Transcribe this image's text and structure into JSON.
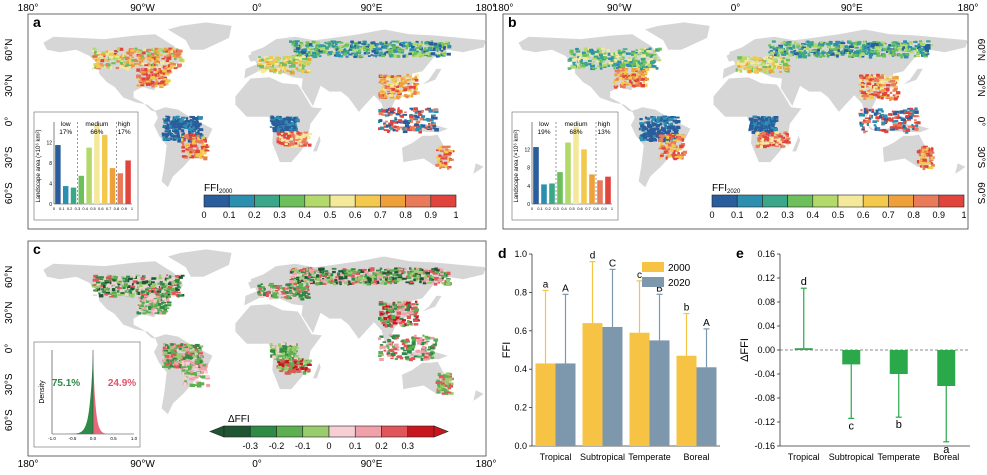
{
  "panels": {
    "a": "a",
    "b": "b",
    "c": "c",
    "d": "d",
    "e": "e"
  },
  "map_axes": {
    "lon_ticks": [
      "180°",
      "90°W",
      "0°",
      "90°E",
      "180°"
    ],
    "lat_ticks_ab": [
      "60°N",
      "30°N",
      "0°",
      "30°S",
      "60°S"
    ],
    "lat_ticks_c": [
      "60°N",
      "30°N",
      "0°",
      "30°S",
      "60°S"
    ]
  },
  "colors": {
    "ffi_scale": [
      "#2a5d9c",
      "#2c8fb0",
      "#3aa68a",
      "#6cbf5a",
      "#b3d96b",
      "#f4e99a",
      "#f2c94c",
      "#eea13a",
      "#e97a5a",
      "#e0443c"
    ],
    "dffi_scale": [
      "#1e5631",
      "#2f8a46",
      "#5cb04f",
      "#9acb6c",
      "#f6cfd4",
      "#f0a0a8",
      "#e0565a",
      "#c8181e"
    ],
    "map_land": "#d6d6d6",
    "bar_2000": "#f6c344",
    "bar_2020": "#7d97ad",
    "delta_bar": "#2aa84a"
  },
  "colorbar_ffi": {
    "labels": [
      "0",
      "0.1",
      "0.2",
      "0.3",
      "0.4",
      "0.5",
      "0.6",
      "0.7",
      "0.8",
      "0.9",
      "1"
    ]
  },
  "colorbar_a_title": "FFI",
  "colorbar_a_sub": "2000",
  "colorbar_b_title": "FFI",
  "colorbar_b_sub": "2020",
  "colorbar_c": {
    "title": "ΔFFI",
    "labels": [
      "-0.3",
      "-0.2",
      "-0.1",
      "0",
      "0.1",
      "0.2",
      "0.3"
    ]
  },
  "inset_a": {
    "ylabel": "Landscape area (×10⁶ km²)",
    "yticks": [
      "0",
      "4",
      "8",
      "12"
    ],
    "xticks": [
      "0",
      "0.1",
      "0.2",
      "0.3",
      "0.4",
      "0.5",
      "0.6",
      "0.7",
      "0.8",
      "0.9",
      "1"
    ],
    "groups": [
      {
        "name": "low",
        "pct": "17%"
      },
      {
        "name": "medium",
        "pct": "66%"
      },
      {
        "name": "high",
        "pct": "17%"
      }
    ]
  },
  "inset_b": {
    "ylabel": "Landscape area (×10⁶ km²)",
    "yticks": [
      "0",
      "4",
      "8",
      "12"
    ],
    "xticks": [
      "0",
      "0.1",
      "0.2",
      "0.3",
      "0.4",
      "0.5",
      "0.6",
      "0.7",
      "0.8",
      "0.9",
      "1"
    ],
    "groups": [
      {
        "name": "low",
        "pct": "19%"
      },
      {
        "name": "medium",
        "pct": "68%"
      },
      {
        "name": "high",
        "pct": "13%"
      }
    ]
  },
  "inset_c": {
    "ylabel": "Density",
    "xticks": [
      "-1.0",
      "-0.5",
      "0.0",
      "0.5",
      "1.0"
    ],
    "neg_pct": "75.1%",
    "pos_pct": "24.9%"
  },
  "chart_data": [
    {
      "type": "bar",
      "panel": "a-inset",
      "categories": [
        "0-0.1",
        "0.1-0.2",
        "0.2-0.3",
        "0.3-0.4",
        "0.4-0.5",
        "0.5-0.6",
        "0.6-0.7",
        "0.7-0.8",
        "0.8-0.9",
        "0.9-1"
      ],
      "values": [
        11.5,
        3.5,
        3.2,
        5.5,
        11,
        15.5,
        13.5,
        7,
        6,
        8.5
      ],
      "ylim": [
        0,
        16
      ]
    },
    {
      "type": "bar",
      "panel": "b-inset",
      "categories": [
        "0-0.1",
        "0.1-0.2",
        "0.2-0.3",
        "0.3-0.4",
        "0.4-0.5",
        "0.5-0.6",
        "0.6-0.7",
        "0.7-0.8",
        "0.8-0.9",
        "0.9-1"
      ],
      "values": [
        12.5,
        4.3,
        4.5,
        7,
        13.5,
        17,
        12,
        6.5,
        5.2,
        6
      ],
      "ylim": [
        0,
        18
      ]
    },
    {
      "type": "bar",
      "panel": "d",
      "categories": [
        "Tropical",
        "Subtropical",
        "Temperate",
        "Boreal"
      ],
      "series": [
        {
          "name": "2000",
          "values": [
            0.43,
            0.64,
            0.59,
            0.47
          ],
          "err": [
            0.38,
            0.32,
            0.27,
            0.22
          ],
          "letters": [
            "a",
            "d",
            "c",
            "b"
          ]
        },
        {
          "name": "2020",
          "values": [
            0.43,
            0.62,
            0.55,
            0.41
          ],
          "err": [
            0.36,
            0.3,
            0.24,
            0.2
          ],
          "letters": [
            "A",
            "C",
            "B",
            "A"
          ]
        }
      ],
      "ylabel": "FFI",
      "ylim": [
        0,
        1.0
      ],
      "yticks": [
        "0.0",
        "0.2",
        "0.4",
        "0.6",
        "0.8",
        "1.0"
      ]
    },
    {
      "type": "bar",
      "panel": "e",
      "categories": [
        "Tropical",
        "Subtropical",
        "Temperate",
        "Boreal"
      ],
      "values": [
        0.003,
        -0.024,
        -0.04,
        -0.06
      ],
      "err": [
        0.1,
        0.09,
        0.072,
        0.093
      ],
      "letters": [
        "d",
        "c",
        "b",
        "a"
      ],
      "ylabel": "ΔFFI",
      "ylim": [
        -0.16,
        0.16
      ],
      "yticks": [
        "0.16",
        "0.12",
        "0.08",
        "0.04",
        "0.00",
        "-0.04",
        "-0.08",
        "-0.12",
        "-0.16"
      ]
    }
  ]
}
